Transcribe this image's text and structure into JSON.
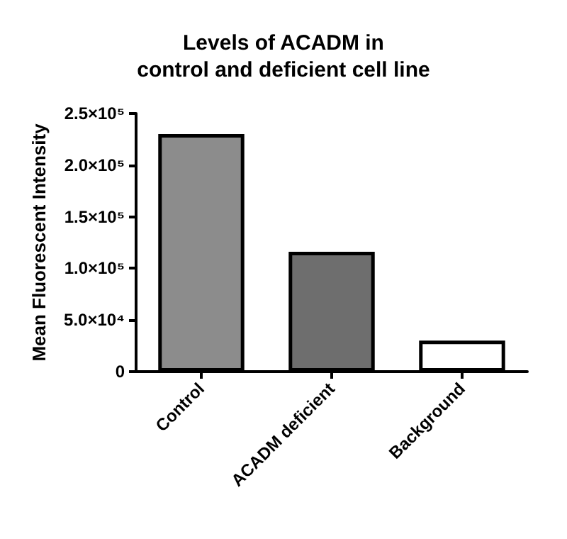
{
  "chart_data": {
    "type": "bar",
    "title": "Levels of ACADM in\ncontrol and deficient cell line",
    "ylabel": "Mean Fluorescent Intensity",
    "categories": [
      "Control",
      "ACADM deficient",
      "Background"
    ],
    "values": [
      230000,
      116000,
      30000
    ],
    "colors": [
      "#8c8c8c",
      "#6e6e6e",
      "#ffffff"
    ],
    "ylim": [
      0,
      250000
    ],
    "yticks": [
      0,
      {
        "value": 50000,
        "label": "5.0×10⁴"
      },
      {
        "value": 100000,
        "label": "1.0×10⁵"
      },
      {
        "value": 150000,
        "label": "1.5×10⁵"
      },
      {
        "value": 200000,
        "label": "2.0×10⁵"
      },
      {
        "value": 250000,
        "label": "2.5×10⁵"
      }
    ],
    "grid": false
  }
}
